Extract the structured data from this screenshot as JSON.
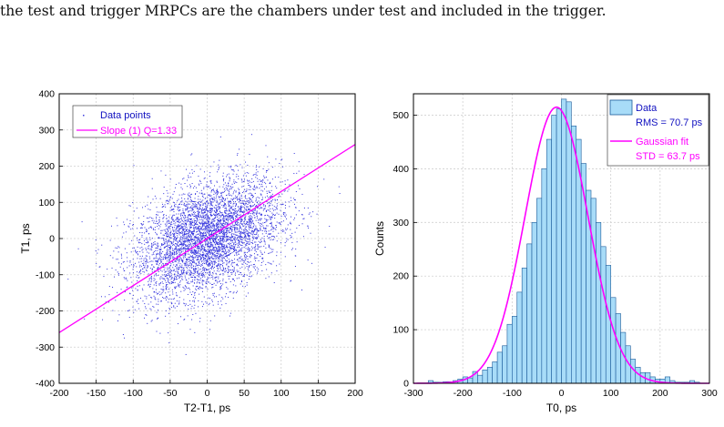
{
  "caption": "the test and trigger MRPCs are the chambers under test and included in the trigger.",
  "chart_data": [
    {
      "type": "scatter",
      "xlabel": "T2-T1, ps",
      "ylabel": "T1, ps",
      "xlim": [
        -200,
        200
      ],
      "ylim": [
        -400,
        400
      ],
      "xticks": [
        "-200",
        "-150",
        "-100",
        "-50",
        "0",
        "50",
        "100",
        "150",
        "200"
      ],
      "yticks": [
        "-400",
        "-300",
        "-200",
        "-100",
        "0",
        "100",
        "200",
        "300",
        "400"
      ],
      "grid": true,
      "legend_position": "top-left",
      "series": [
        {
          "name": "Data points",
          "kind": "points",
          "color": "#3333dd",
          "count": 5000,
          "x_mean": 0,
          "x_std": 50,
          "y_slope": 0.66,
          "y_std_resid": 75
        },
        {
          "name": "Slope (1) Q=1.33",
          "kind": "line",
          "color": "#ff00ff",
          "x": [
            -200,
            200
          ],
          "y": [
            -260,
            260
          ]
        }
      ]
    },
    {
      "type": "bar",
      "xlabel": "T0, ps",
      "ylabel": "Counts",
      "xlim": [
        -300,
        300
      ],
      "ylim": [
        0,
        540
      ],
      "xticks": [
        "-300",
        "-200",
        "-100",
        "0",
        "100",
        "200",
        "300"
      ],
      "yticks": [
        "0",
        "100",
        "200",
        "300",
        "400",
        "500"
      ],
      "grid": true,
      "legend_position": "top-right",
      "bin_width": 10,
      "bin_start": -300,
      "values": [
        0,
        0,
        0,
        5,
        2,
        2,
        3,
        3,
        5,
        8,
        12,
        10,
        22,
        15,
        25,
        30,
        40,
        58,
        70,
        110,
        125,
        170,
        215,
        260,
        300,
        345,
        400,
        455,
        500,
        512,
        530,
        525,
        480,
        455,
        410,
        360,
        345,
        300,
        255,
        220,
        160,
        130,
        95,
        70,
        45,
        30,
        20,
        20,
        12,
        8,
        8,
        12,
        5,
        2,
        2,
        2,
        5,
        2,
        0,
        0
      ],
      "series": [
        {
          "name": "Data",
          "kind": "hist",
          "color": "#a8dcf8",
          "stat": "RMS = 70.7 ps"
        },
        {
          "name": "Gaussian fit",
          "kind": "curve",
          "color": "#ff00ff",
          "stat": "STD = 63.7 ps",
          "mean": -10,
          "std": 63.7,
          "amplitude": 515
        }
      ]
    }
  ]
}
